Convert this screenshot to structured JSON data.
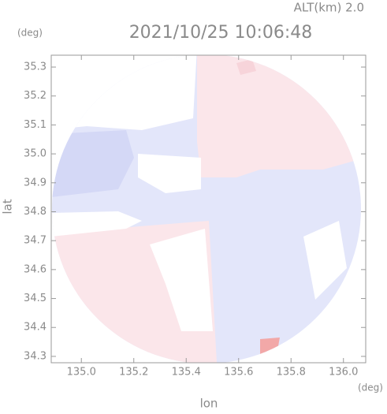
{
  "chart_data": {
    "type": "map",
    "header": "ALT(km) 2.0",
    "title": "2021/10/25 10:06:48",
    "y_unit": "(deg)",
    "x_unit": "(deg)",
    "ylabel": "lat",
    "xlabel": "lon",
    "xlim": [
      134.885,
      136.085
    ],
    "ylim": [
      34.278,
      35.341
    ],
    "xticks": [
      {
        "value": 135.0,
        "label": "135.0"
      },
      135.2,
      135.4,
      135.6,
      135.8,
      {
        "value": 136.0,
        "label": "136.0"
      }
    ],
    "yticks": [
      34.3,
      34.4,
      34.5,
      34.6,
      34.7,
      34.8,
      34.9,
      {
        "value": 35.0,
        "label": "35.0"
      },
      35.1,
      35.2,
      35.3
    ]
  }
}
